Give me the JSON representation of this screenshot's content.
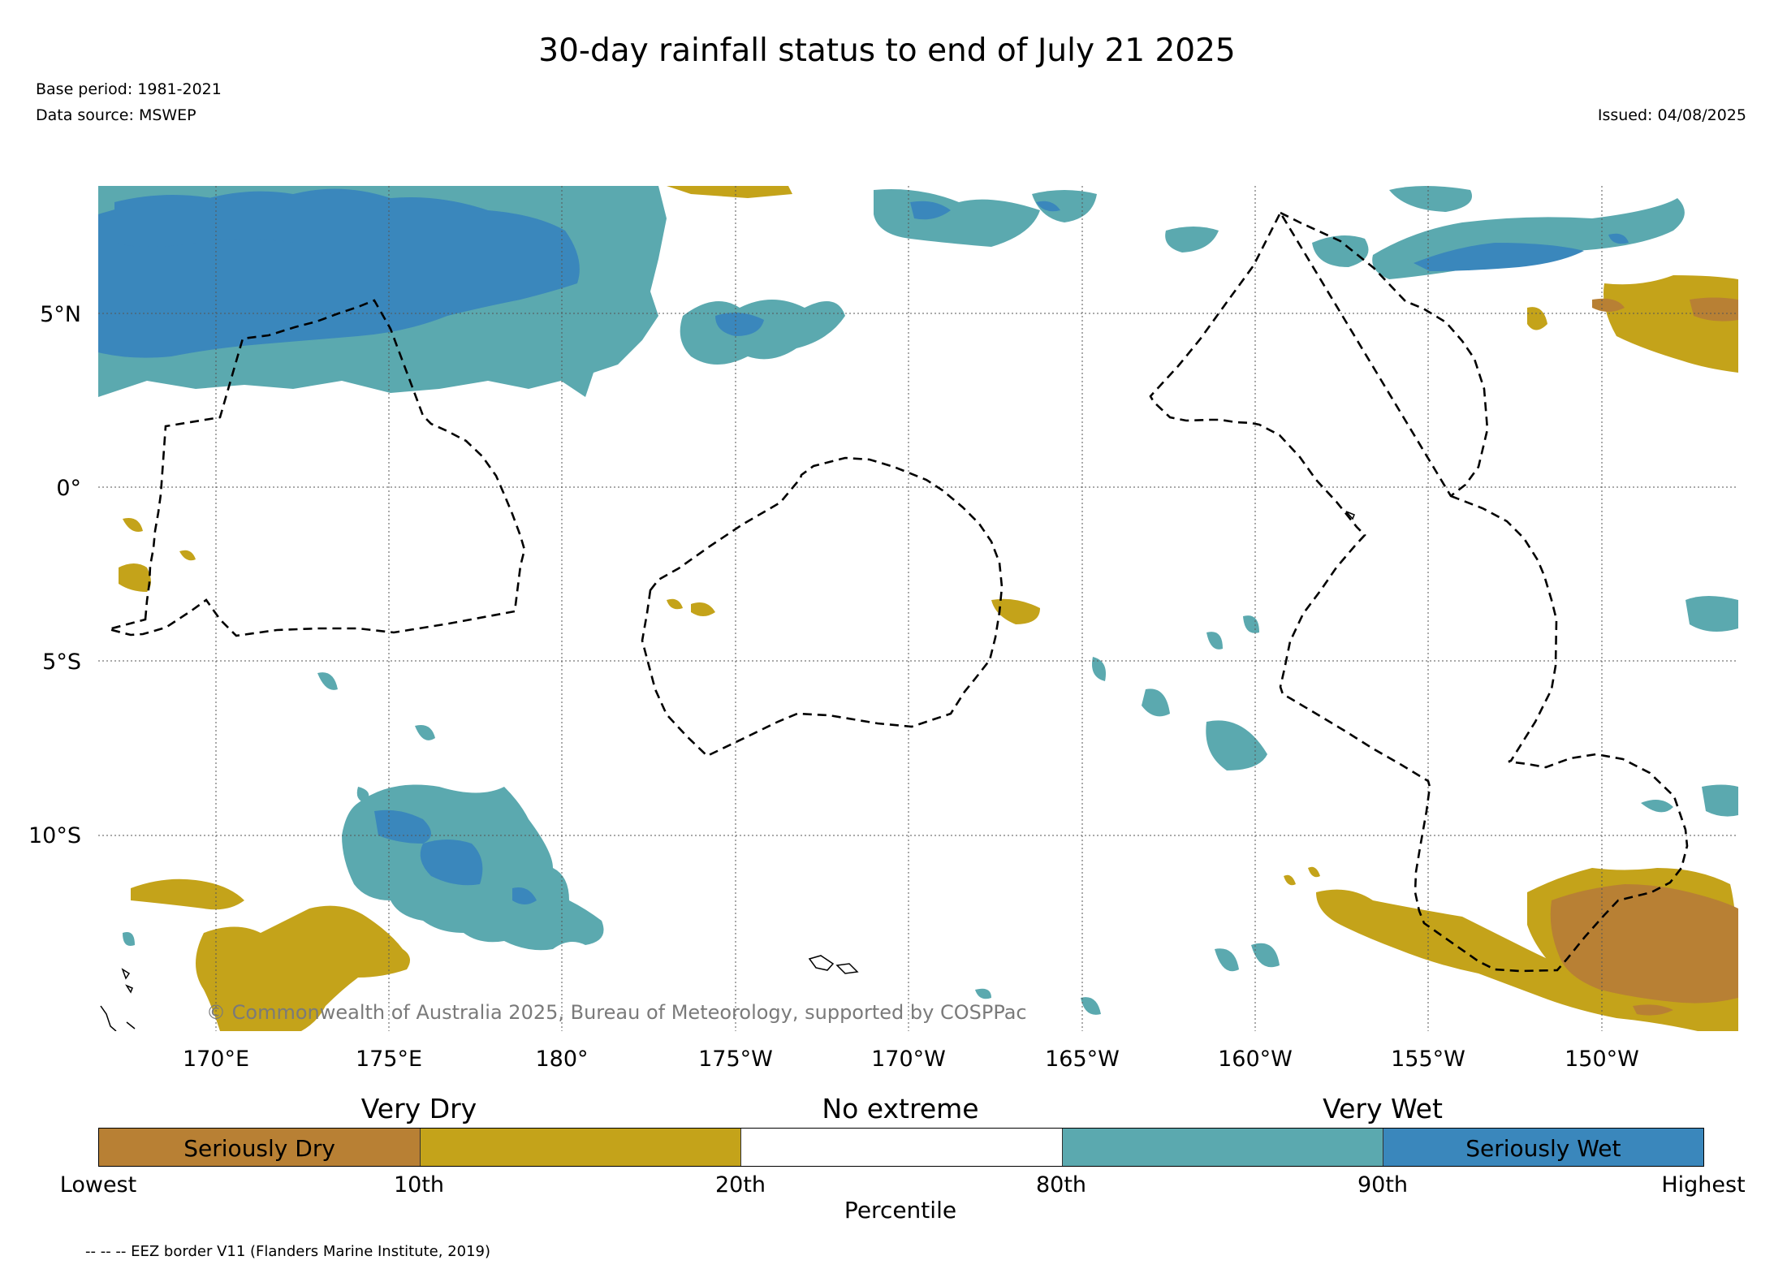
{
  "header": {
    "title": "30-day rainfall status to end of July 21 2025",
    "base_period": "Base period: 1981-2021",
    "data_source": "Data source: MSWEP",
    "issued": "Issued: 04/08/2025"
  },
  "map": {
    "latitude_labels": [
      "5°N",
      "0°",
      "5°S",
      "10°S"
    ],
    "longitude_labels": [
      "170°E",
      "175°E",
      "180°",
      "175°W",
      "170°W",
      "165°W",
      "160°W",
      "155°W",
      "150°W"
    ],
    "copyright": "© Commonwealth of Australia 2025, Bureau of Meteorology, supported by COSPPac",
    "colors": {
      "seriously_dry": "#b88034",
      "very_dry": "#c4a31a",
      "no_extreme": "#ffffff",
      "very_wet": "#5ba9af",
      "seriously_wet": "#3a87bc"
    }
  },
  "legend": {
    "categories": [
      "Very Dry",
      "No extreme",
      "Very Wet"
    ],
    "segments": [
      "Seriously Dry",
      "",
      "",
      "",
      "Seriously Wet"
    ],
    "ticks": [
      "Lowest",
      "10th",
      "20th",
      "80th",
      "90th",
      "Highest"
    ],
    "axis_label": "Percentile"
  },
  "footer": {
    "eez_note": "-- -- -- EEZ border V11 (Flanders Marine Institute, 2019)"
  }
}
